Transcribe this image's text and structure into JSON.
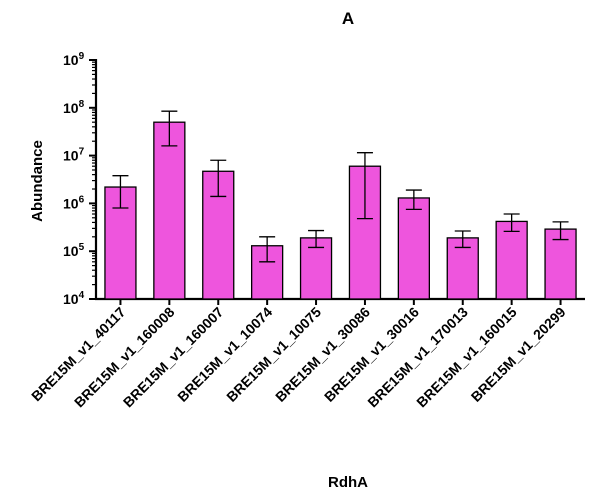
{
  "chart_data": {
    "type": "bar",
    "title": "A",
    "xlabel": "RdhA",
    "ylabel": "Abundance",
    "yscale": "log",
    "ylim": [
      10000,
      1000000000
    ],
    "y_ticks": [
      {
        "base": "10",
        "exp": "4",
        "value": 10000
      },
      {
        "base": "10",
        "exp": "5",
        "value": 100000
      },
      {
        "base": "10",
        "exp": "6",
        "value": 1000000
      },
      {
        "base": "10",
        "exp": "7",
        "value": 10000000
      },
      {
        "base": "10",
        "exp": "8",
        "value": 100000000
      },
      {
        "base": "10",
        "exp": "9",
        "value": 1000000000
      }
    ],
    "categories": [
      "BRE15M_v1_40117",
      "BRE15M_v1_160008",
      "BRE15M_v1_160007",
      "BRE15M_v1_10074",
      "BRE15M_v1_10075",
      "BRE15M_v1_30086",
      "BRE15M_v1_30016",
      "BRE15M_v1_170013",
      "BRE15M_v1_160015",
      "BRE15M_v1_20299"
    ],
    "values": [
      2200000,
      50000000,
      4700000,
      130000,
      190000,
      6000000,
      1300000,
      190000,
      420000,
      290000
    ],
    "error_lower": [
      800000,
      16000000,
      1400000,
      60000,
      120000,
      480000,
      750000,
      120000,
      260000,
      175000
    ],
    "error_upper": [
      3800000,
      85000000,
      8000000,
      200000,
      270000,
      11500000,
      1900000,
      265000,
      600000,
      410000
    ],
    "bar_color": "#ee55dd",
    "bar_edge_color": "#000000",
    "grid": false
  }
}
